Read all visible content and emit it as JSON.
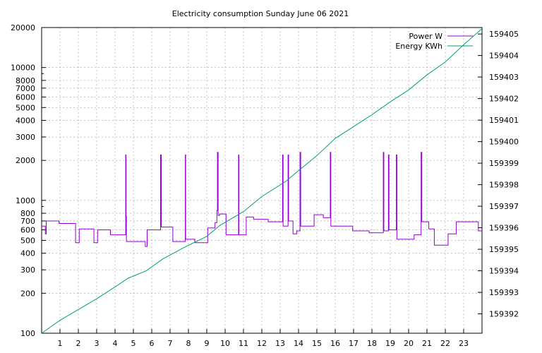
{
  "chart_data": {
    "type": "line",
    "title": "Electricity consumption Sunday June 06 2021",
    "xlabel": "",
    "x_ticks": [
      1,
      2,
      3,
      4,
      5,
      6,
      7,
      8,
      9,
      10,
      11,
      12,
      13,
      14,
      15,
      16,
      17,
      18,
      19,
      20,
      21,
      22,
      23
    ],
    "xlim": [
      0,
      24
    ],
    "y_left": {
      "scale": "log",
      "lim": [
        100,
        20000
      ],
      "ticks": [
        100,
        200,
        300,
        400,
        500,
        600,
        700,
        800,
        1000,
        2000,
        3000,
        4000,
        5000,
        6000,
        7000,
        8000,
        10000,
        20000
      ]
    },
    "y_right": {
      "scale": "linear",
      "lim": [
        159391.1,
        159405.3
      ],
      "ticks": [
        159392,
        159393,
        159394,
        159395,
        159396,
        159397,
        159398,
        159399,
        159400,
        159401,
        159402,
        159403,
        159404,
        159405
      ]
    },
    "grid": true,
    "legend": "top-right",
    "series": [
      {
        "name": "Power W",
        "axis": "left",
        "color": "#9400d3",
        "step": true,
        "points": [
          [
            0,
            640
          ],
          [
            0.2,
            560
          ],
          [
            0.25,
            700
          ],
          [
            0.95,
            670
          ],
          [
            1.6,
            670
          ],
          [
            1.85,
            480
          ],
          [
            2.05,
            610
          ],
          [
            2.8,
            610
          ],
          [
            2.85,
            480
          ],
          [
            3.05,
            600
          ],
          [
            3.7,
            600
          ],
          [
            3.75,
            550
          ],
          [
            4.55,
            550
          ],
          [
            4.58,
            2200
          ],
          [
            4.6,
            760
          ],
          [
            4.62,
            490
          ],
          [
            5.6,
            490
          ],
          [
            5.65,
            450
          ],
          [
            5.75,
            600
          ],
          [
            6.45,
            600
          ],
          [
            6.48,
            2200
          ],
          [
            6.52,
            630
          ],
          [
            7.1,
            630
          ],
          [
            7.15,
            490
          ],
          [
            7.8,
            490
          ],
          [
            7.83,
            2200
          ],
          [
            7.85,
            510
          ],
          [
            8.3,
            510
          ],
          [
            8.35,
            480
          ],
          [
            9.0,
            480
          ],
          [
            9.05,
            620
          ],
          [
            9.4,
            620
          ],
          [
            9.45,
            680
          ],
          [
            9.55,
            840
          ],
          [
            9.58,
            2300
          ],
          [
            9.62,
            770
          ],
          [
            9.7,
            790
          ],
          [
            10.0,
            790
          ],
          [
            10.05,
            550
          ],
          [
            10.7,
            550
          ],
          [
            10.73,
            2200
          ],
          [
            10.75,
            550
          ],
          [
            11.1,
            550
          ],
          [
            11.15,
            750
          ],
          [
            11.5,
            750
          ],
          [
            11.55,
            720
          ],
          [
            12.3,
            720
          ],
          [
            12.35,
            690
          ],
          [
            13.1,
            690
          ],
          [
            13.13,
            2200
          ],
          [
            13.16,
            640
          ],
          [
            13.4,
            640
          ],
          [
            13.43,
            2200
          ],
          [
            13.46,
            700
          ],
          [
            13.65,
            700
          ],
          [
            13.7,
            560
          ],
          [
            13.85,
            560
          ],
          [
            13.9,
            590
          ],
          [
            14.05,
            590
          ],
          [
            14.08,
            2300
          ],
          [
            14.12,
            640
          ],
          [
            14.8,
            640
          ],
          [
            14.85,
            780
          ],
          [
            15.3,
            780
          ],
          [
            15.35,
            740
          ],
          [
            15.7,
            740
          ],
          [
            15.73,
            2300
          ],
          [
            15.76,
            640
          ],
          [
            16.9,
            640
          ],
          [
            16.95,
            590
          ],
          [
            17.8,
            590
          ],
          [
            17.85,
            570
          ],
          [
            18.6,
            570
          ],
          [
            18.62,
            2300
          ],
          [
            18.65,
            590
          ],
          [
            18.88,
            590
          ],
          [
            18.9,
            2200
          ],
          [
            18.93,
            600
          ],
          [
            19.3,
            600
          ],
          [
            19.33,
            2200
          ],
          [
            19.36,
            510
          ],
          [
            20.25,
            510
          ],
          [
            20.3,
            550
          ],
          [
            20.65,
            550
          ],
          [
            20.68,
            2300
          ],
          [
            20.72,
            690
          ],
          [
            21.05,
            690
          ],
          [
            21.1,
            610
          ],
          [
            21.35,
            610
          ],
          [
            21.4,
            460
          ],
          [
            22.1,
            460
          ],
          [
            22.15,
            560
          ],
          [
            22.55,
            560
          ],
          [
            22.6,
            690
          ],
          [
            23.75,
            690
          ],
          [
            23.8,
            590
          ],
          [
            24,
            590
          ]
        ]
      },
      {
        "name": "Energy KWh",
        "axis": "right",
        "color": "#009e73",
        "step": false,
        "points": [
          [
            0,
            159391.1
          ],
          [
            1,
            159391.7
          ],
          [
            2,
            159392.2
          ],
          [
            3,
            159392.7
          ],
          [
            4,
            159393.25
          ],
          [
            4.7,
            159393.65
          ],
          [
            5.7,
            159394.0
          ],
          [
            6.6,
            159394.55
          ],
          [
            7.8,
            159395.1
          ],
          [
            9.0,
            159395.6
          ],
          [
            9.7,
            159396.1
          ],
          [
            11.0,
            159396.75
          ],
          [
            12.0,
            159397.45
          ],
          [
            13.3,
            159398.15
          ],
          [
            14.0,
            159398.65
          ],
          [
            15.0,
            159399.35
          ],
          [
            16.0,
            159400.15
          ],
          [
            17.0,
            159400.7
          ],
          [
            18.0,
            159401.25
          ],
          [
            19.0,
            159401.85
          ],
          [
            20.0,
            159402.4
          ],
          [
            21.0,
            159403.1
          ],
          [
            22.0,
            159403.7
          ],
          [
            23.0,
            159404.5
          ],
          [
            24.0,
            159405.25
          ]
        ]
      }
    ]
  }
}
